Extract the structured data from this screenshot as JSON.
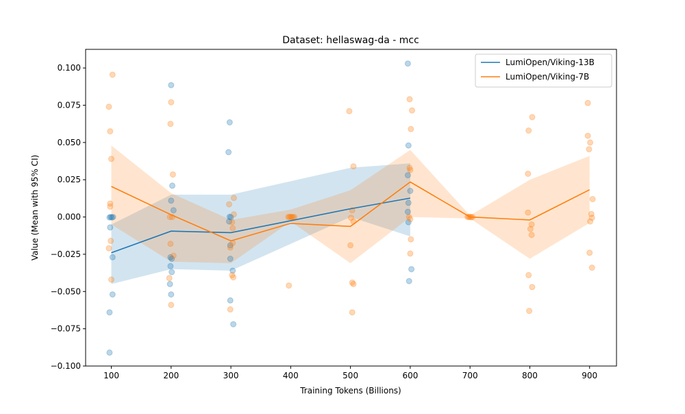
{
  "chart_data": {
    "type": "line",
    "title": "Dataset: hellaswag-da - mcc",
    "xlabel": "Training Tokens (Billions)",
    "ylabel": "Value (Mean with 95% CI)",
    "xlim": [
      57,
      945
    ],
    "ylim": [
      -0.1,
      0.1125
    ],
    "xticks": [
      100,
      200,
      300,
      400,
      500,
      600,
      700,
      800,
      900
    ],
    "yticks": [
      -0.1,
      -0.075,
      -0.05,
      -0.025,
      0.0,
      0.025,
      0.05,
      0.075,
      0.1
    ],
    "ytick_labels": [
      "−0.100",
      "−0.075",
      "−0.050",
      "−0.025",
      "0.000",
      "0.025",
      "0.050",
      "0.075",
      "0.100"
    ],
    "grid": false,
    "legend_position": "top-right",
    "series": [
      {
        "name": "LumiOpen/Viking-13B",
        "color": "#1f77b4",
        "x": [
          100,
          200,
          300,
          500,
          600
        ],
        "mean": [
          -0.024,
          -0.0095,
          -0.0105,
          0.0055,
          0.0127
        ],
        "ci_low": [
          -0.045,
          -0.035,
          -0.036,
          0.0,
          -0.013
        ],
        "ci_high": [
          -0.005,
          0.015,
          0.015,
          0.033,
          0.036
        ],
        "scatter": [
          [
            97,
            -0.0003
          ],
          [
            99,
            0.0
          ],
          [
            101,
            -0.0003
          ],
          [
            103,
            0.0
          ],
          [
            98,
            -0.007
          ],
          [
            102,
            -0.027
          ],
          [
            102,
            -0.052
          ],
          [
            97,
            -0.064
          ],
          [
            97,
            -0.091
          ],
          [
            200,
            0.0885
          ],
          [
            202,
            0.021
          ],
          [
            200,
            0.011
          ],
          [
            204,
            0.0045
          ],
          [
            199,
            -0.027
          ],
          [
            201,
            -0.028
          ],
          [
            199,
            -0.033
          ],
          [
            201,
            -0.037
          ],
          [
            198,
            -0.045
          ],
          [
            200,
            -0.052
          ],
          [
            298,
            0.0635
          ],
          [
            296,
            0.0435
          ],
          [
            298,
            0.0002
          ],
          [
            300,
            -0.0002
          ],
          [
            297,
            -0.003
          ],
          [
            299,
            -0.019
          ],
          [
            299,
            -0.028
          ],
          [
            303,
            -0.036
          ],
          [
            299,
            -0.056
          ],
          [
            304,
            -0.072
          ],
          [
            596,
            0.103
          ],
          [
            597,
            0.048
          ],
          [
            600,
            0.0175
          ],
          [
            596,
            0.028
          ],
          [
            597,
            0.0095
          ],
          [
            596,
            0.0035
          ],
          [
            597,
            -0.0035
          ],
          [
            602,
            -0.035
          ],
          [
            598,
            -0.043
          ]
        ]
      },
      {
        "name": "LumiOpen/Viking-7B",
        "color": "#ff7f0e",
        "x": [
          100,
          200,
          300,
          400,
          500,
          600,
          700,
          800,
          900
        ],
        "mean": [
          0.0205,
          0.0015,
          -0.016,
          -0.0043,
          -0.0063,
          0.0235,
          0.0,
          -0.002,
          0.0183
        ],
        "ci_low": [
          -0.005,
          -0.03,
          -0.031,
          -0.003,
          -0.031,
          0.0,
          -0.001,
          -0.028,
          -0.004
        ],
        "ci_high": [
          0.048,
          0.016,
          -0.002,
          0.005,
          0.018,
          0.045,
          0.001,
          0.025,
          0.041
        ],
        "scatter": [
          [
            102,
            0.0955
          ],
          [
            96,
            0.074
          ],
          [
            98,
            0.0575
          ],
          [
            100,
            0.039
          ],
          [
            98,
            0.009
          ],
          [
            98,
            0.007
          ],
          [
            99,
            -0.016
          ],
          [
            96,
            -0.021
          ],
          [
            100,
            -0.042
          ],
          [
            200,
            0.077
          ],
          [
            199,
            0.0625
          ],
          [
            203,
            0.0285
          ],
          [
            198,
            0.0
          ],
          [
            202,
            0.0
          ],
          [
            199,
            -0.018
          ],
          [
            204,
            -0.026
          ],
          [
            197,
            -0.041
          ],
          [
            200,
            -0.059
          ],
          [
            297,
            0.0085
          ],
          [
            305,
            0.0128
          ],
          [
            305,
            0.0018
          ],
          [
            302,
            -0.0035
          ],
          [
            303,
            -0.0075
          ],
          [
            303,
            -0.0175
          ],
          [
            299,
            -0.0205
          ],
          [
            304,
            -0.0405
          ],
          [
            302,
            -0.039
          ],
          [
            299,
            -0.062
          ],
          [
            396,
            0.0
          ],
          [
            398,
            0.0
          ],
          [
            400,
            0.0002
          ],
          [
            402,
            0.0
          ],
          [
            404,
            -0.0002
          ],
          [
            406,
            0.0
          ],
          [
            397,
            -0.046
          ],
          [
            498,
            0.071
          ],
          [
            505,
            0.034
          ],
          [
            503,
            0.0045
          ],
          [
            501,
            -0.0005
          ],
          [
            505,
            -0.003
          ],
          [
            500,
            -0.019
          ],
          [
            503,
            -0.044
          ],
          [
            505,
            -0.045
          ],
          [
            503,
            -0.064
          ],
          [
            599,
            0.079
          ],
          [
            603,
            0.0715
          ],
          [
            601,
            0.059
          ],
          [
            599,
            0.033
          ],
          [
            600,
            0.0315
          ],
          [
            598,
            0.0
          ],
          [
            600,
            -0.0015
          ],
          [
            601,
            -0.015
          ],
          [
            600,
            -0.0245
          ],
          [
            696,
            0.0
          ],
          [
            698,
            0.0
          ],
          [
            700,
            0.0002
          ],
          [
            702,
            -0.0002
          ],
          [
            704,
            0.0
          ],
          [
            804,
            0.067
          ],
          [
            798,
            0.058
          ],
          [
            797,
            0.029
          ],
          [
            797,
            0.003
          ],
          [
            803,
            -0.005
          ],
          [
            801,
            -0.008
          ],
          [
            803,
            -0.012
          ],
          [
            798,
            -0.039
          ],
          [
            804,
            -0.047
          ],
          [
            799,
            -0.063
          ],
          [
            897,
            0.0765
          ],
          [
            897,
            0.0545
          ],
          [
            901,
            0.05
          ],
          [
            899,
            0.0455
          ],
          [
            905,
            0.012
          ],
          [
            903,
            0.002
          ],
          [
            904,
            -0.0005
          ],
          [
            901,
            -0.003
          ],
          [
            900,
            -0.024
          ],
          [
            904,
            -0.034
          ]
        ]
      }
    ]
  }
}
